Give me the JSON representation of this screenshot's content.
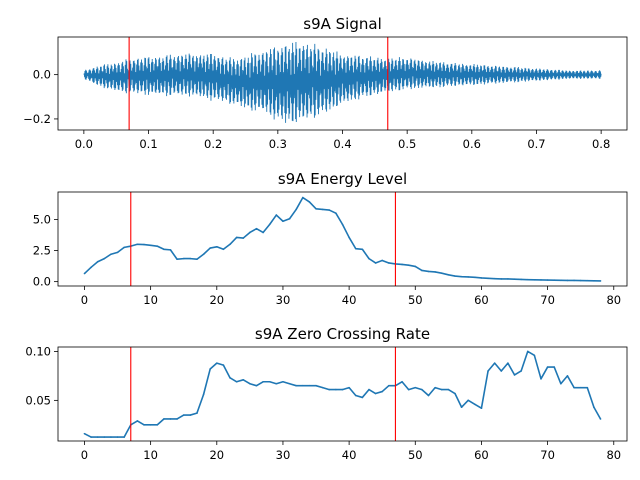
{
  "colors": {
    "series": "#1f77b4",
    "marker": "#ff0000",
    "axes": "#000000",
    "background": "#ffffff"
  },
  "chart_data": [
    {
      "type": "line",
      "title": "s9A Signal",
      "xlabel": "",
      "ylabel": "",
      "xlim": [
        -0.04,
        0.84
      ],
      "ylim": [
        -0.25,
        0.17
      ],
      "xticks": [
        0.0,
        0.1,
        0.2,
        0.3,
        0.4,
        0.5,
        0.6,
        0.7,
        0.8
      ],
      "xtick_labels": [
        "0.0",
        "0.1",
        "0.2",
        "0.3",
        "0.4",
        "0.5",
        "0.6",
        "0.7",
        "0.8"
      ],
      "yticks": [
        0.0,
        -0.2
      ],
      "ytick_labels": [
        "0.0",
        "−0.2"
      ],
      "vlines": [
        0.07,
        0.47
      ],
      "grid": false,
      "envelope": {
        "x": [
          0.0,
          0.02,
          0.05,
          0.08,
          0.12,
          0.16,
          0.2,
          0.23,
          0.25,
          0.28,
          0.3,
          0.32,
          0.34,
          0.36,
          0.38,
          0.4,
          0.43,
          0.46,
          0.5,
          0.55,
          0.6,
          0.65,
          0.7,
          0.75,
          0.8
        ],
        "upper": [
          0.02,
          0.04,
          0.06,
          0.08,
          0.09,
          0.1,
          0.1,
          0.08,
          0.09,
          0.12,
          0.14,
          0.15,
          0.16,
          0.14,
          0.12,
          0.1,
          0.09,
          0.08,
          0.08,
          0.06,
          0.05,
          0.04,
          0.03,
          0.02,
          0.02
        ],
        "lower": [
          -0.02,
          -0.05,
          -0.08,
          -0.09,
          -0.1,
          -0.1,
          -0.12,
          -0.14,
          -0.16,
          -0.18,
          -0.22,
          -0.23,
          -0.22,
          -0.2,
          -0.17,
          -0.14,
          -0.11,
          -0.09,
          -0.07,
          -0.06,
          -0.05,
          -0.04,
          -0.03,
          -0.02,
          -0.02
        ]
      }
    },
    {
      "type": "line",
      "title": "s9A Energy Level",
      "xlabel": "",
      "ylabel": "",
      "xlim": [
        -4,
        82
      ],
      "ylim": [
        -0.35,
        7.2
      ],
      "xticks": [
        0,
        10,
        20,
        30,
        40,
        50,
        60,
        70,
        80
      ],
      "xtick_labels": [
        "0",
        "10",
        "20",
        "30",
        "40",
        "50",
        "60",
        "70",
        "80"
      ],
      "yticks": [
        0.0,
        2.5,
        5.0
      ],
      "ytick_labels": [
        "0.0",
        "2.5",
        "5.0"
      ],
      "vlines": [
        7,
        47
      ],
      "grid": false,
      "x": [
        0,
        1,
        2,
        3,
        4,
        5,
        6,
        7,
        8,
        9,
        10,
        11,
        12,
        13,
        14,
        15,
        16,
        17,
        18,
        19,
        20,
        21,
        22,
        23,
        24,
        25,
        26,
        27,
        28,
        29,
        30,
        31,
        32,
        33,
        34,
        35,
        36,
        37,
        38,
        39,
        40,
        41,
        42,
        43,
        44,
        45,
        46,
        47,
        48,
        49,
        50,
        51,
        52,
        53,
        54,
        55,
        56,
        57,
        58,
        59,
        60,
        61,
        62,
        63,
        64,
        65,
        66,
        67,
        68,
        69,
        70,
        71,
        72,
        73,
        74,
        75,
        76,
        77,
        78
      ],
      "values": [
        0.65,
        1.15,
        1.6,
        1.85,
        2.2,
        2.35,
        2.75,
        2.85,
        3.0,
        2.98,
        2.92,
        2.85,
        2.6,
        2.55,
        1.8,
        1.85,
        1.85,
        1.8,
        2.2,
        2.7,
        2.8,
        2.6,
        3.0,
        3.55,
        3.5,
        3.95,
        4.25,
        3.95,
        4.6,
        5.35,
        4.85,
        5.05,
        5.8,
        6.75,
        6.4,
        5.85,
        5.8,
        5.75,
        5.5,
        4.6,
        3.55,
        2.65,
        2.6,
        1.85,
        1.5,
        1.7,
        1.5,
        1.42,
        1.38,
        1.32,
        1.22,
        0.9,
        0.82,
        0.78,
        0.68,
        0.55,
        0.45,
        0.4,
        0.38,
        0.35,
        0.3,
        0.27,
        0.24,
        0.22,
        0.22,
        0.2,
        0.18,
        0.16,
        0.15,
        0.14,
        0.13,
        0.12,
        0.11,
        0.1,
        0.1,
        0.09,
        0.08,
        0.07,
        0.06
      ]
    },
    {
      "type": "line",
      "title": "s9A Zero Crossing Rate",
      "xlabel": "",
      "ylabel": "",
      "xlim": [
        -4,
        82
      ],
      "ylim": [
        0.0085,
        0.1045
      ],
      "xticks": [
        0,
        10,
        20,
        30,
        40,
        50,
        60,
        70,
        80
      ],
      "xtick_labels": [
        "0",
        "10",
        "20",
        "30",
        "40",
        "50",
        "60",
        "70",
        "80"
      ],
      "yticks": [
        0.05,
        0.1
      ],
      "ytick_labels": [
        "0.05",
        "0.10"
      ],
      "vlines": [
        7,
        47
      ],
      "grid": false,
      "x": [
        0,
        1,
        2,
        3,
        4,
        5,
        6,
        7,
        8,
        9,
        10,
        11,
        12,
        13,
        14,
        15,
        16,
        17,
        18,
        19,
        20,
        21,
        22,
        23,
        24,
        25,
        26,
        27,
        28,
        29,
        30,
        31,
        32,
        33,
        34,
        35,
        36,
        37,
        38,
        39,
        40,
        41,
        42,
        43,
        44,
        45,
        46,
        47,
        48,
        49,
        50,
        51,
        52,
        53,
        54,
        55,
        56,
        57,
        58,
        59,
        60,
        61,
        62,
        63,
        64,
        65,
        66,
        67,
        68,
        69,
        70,
        71,
        72,
        73,
        74,
        75,
        76,
        77,
        78
      ],
      "values": [
        0.016,
        0.0125,
        0.0125,
        0.0125,
        0.0125,
        0.0125,
        0.0125,
        0.025,
        0.029,
        0.025,
        0.025,
        0.025,
        0.031,
        0.031,
        0.031,
        0.035,
        0.035,
        0.037,
        0.056,
        0.082,
        0.088,
        0.086,
        0.073,
        0.069,
        0.071,
        0.067,
        0.065,
        0.069,
        0.069,
        0.067,
        0.069,
        0.067,
        0.065,
        0.065,
        0.065,
        0.065,
        0.063,
        0.061,
        0.061,
        0.061,
        0.063,
        0.055,
        0.053,
        0.061,
        0.057,
        0.059,
        0.065,
        0.065,
        0.069,
        0.061,
        0.063,
        0.061,
        0.055,
        0.063,
        0.061,
        0.061,
        0.057,
        0.043,
        0.05,
        0.046,
        0.042,
        0.08,
        0.088,
        0.08,
        0.088,
        0.076,
        0.08,
        0.1,
        0.096,
        0.072,
        0.084,
        0.084,
        0.067,
        0.075,
        0.063,
        0.063,
        0.063,
        0.043,
        0.031
      ]
    }
  ]
}
